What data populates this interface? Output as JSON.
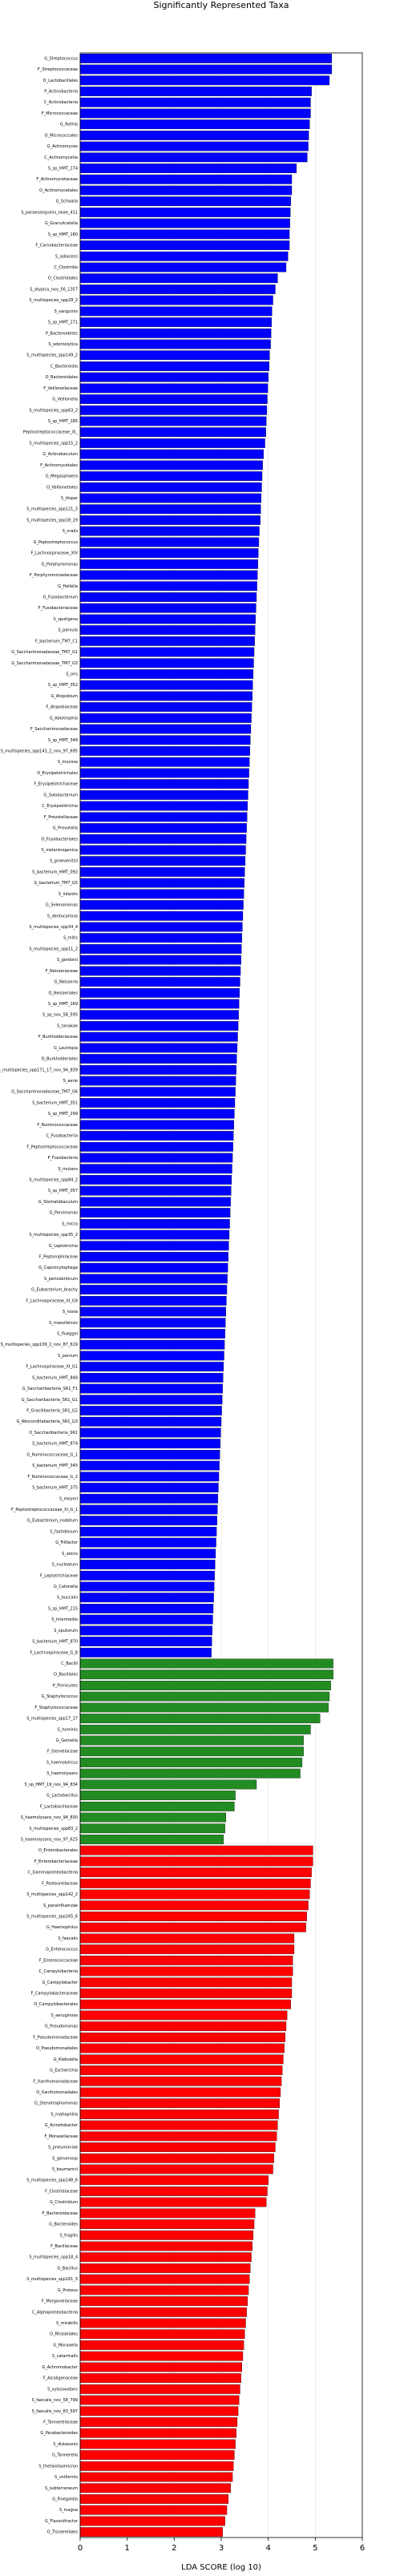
{
  "chart_data": {
    "type": "barh",
    "title": "Significantly Represented Taxa",
    "x_label": "LDA SCORE (log 10)",
    "xlim": [
      0,
      6
    ],
    "xticks": [
      0,
      1,
      2,
      3,
      4,
      5,
      6
    ],
    "grid": true,
    "groups": [
      {
        "color": "#0000ff",
        "categories": [
          "G_Streptococcus",
          "F_Streptococcaceae",
          "O_Lactobacillales",
          "P_Actinobacteria",
          "C_Actinobacteria",
          "F_Micrococcaceae",
          "G_Rothia",
          "O_Micrococcales",
          "G_Actinomyces",
          "C_Actinomycetia",
          "S_sp_HMT_174",
          "F_Actinomycetaceae",
          "O_Actinomycetales",
          "G_Schaalia",
          "S_paraesanguinis_oeae_411",
          "G_Granulicatella",
          "S_sp_HMT_180",
          "F_Carnobacteriaceae",
          "S_adiacens",
          "C_Clostridia",
          "O_Clostridiales",
          "S_atypica_nov_56_1357",
          "S_multispecies_spp29_2",
          "S_sanguinis",
          "S_sp_HMT_171",
          "P_Bacteroidetes",
          "S_odontolytica",
          "S_multispecies_spp149_2",
          "C_Bacteroidia",
          "O_Bacteroidales",
          "F_Veillonellaceae",
          "G_Veillonella",
          "S_multispecies_spp63_2",
          "S_sp_HMT_185",
          "Peptostreptococcaceae_XI_",
          "S_multispecies_spp15_2",
          "G_Actinobaculum",
          "F_Actinomycetales",
          "G_Megasphaera",
          "O_Veillonellales",
          "S_dispar",
          "S_multispecies_spp121_3",
          "S_multispecies_spp18_19",
          "S_oralis",
          "G_Peptostreptococcus",
          "F_Lachnospiraceae_XIV",
          "G_Porphyromonas",
          "F_Porphyromonadaceae",
          "G_Hallella",
          "G_Fusobacterium",
          "F_Fusobacteriaceae",
          "S_sputigena",
          "S_parvula",
          "F_bacterium_TM7_C1",
          "G_Saccharimonadaceae_TM7_G1",
          "G_Saccharimonadaceae_TM7_G3",
          "S_oris",
          "S_sp_HMT_352",
          "G_Atopobium",
          "F_Atopobiaceae",
          "G_Abiotrophia",
          "F_Saccharimonadaceae",
          "S_sp_HMT_348",
          "S_multispecies_spp143_2_nov_97_695",
          "S_mucosa",
          "O_Erysipelotrichales",
          "F_Erysipelotrichaceae",
          "G_Solobacterium",
          "C_Erysipelotrichia",
          "F_Prevotellaceae",
          "G_Prevotella",
          "O_Fusobacteriales",
          "S_melaninogenica",
          "S_graevenitzii",
          "S_bacterium_HMT_092",
          "G_bacterium_TM7_G5",
          "S_infantis",
          "G_Selenomonas",
          "S_dentocariosa",
          "S_multispecies_spp34_4",
          "S_mitis",
          "S_multispecies_spp11_2",
          "S_gordonii",
          "F_Neisseriaceae",
          "G_Neisseria",
          "O_Neisseriales",
          "S_sp_HMT_169",
          "S_sp_nov_58_595",
          "S_tanakae",
          "F_Burkholderiaceae",
          "G_Lautropia",
          "O_Burkholderiales",
          "S_multispecies_spp171_17_nov_94_839",
          "S_aerie",
          "G_Saccharimonadaceae_TM7_G6",
          "S_bacterium_HMT_351",
          "S_sp_HMT_299",
          "F_Ruminococcaceae",
          "C_Fusobacteriia",
          "F_Peptostreptococcaceae",
          "P_Fusobacteria",
          "S_mutans",
          "S_multispecies_spp84_2",
          "S_sp_HMT_057",
          "G_Stomatobaculum",
          "G_Parvimonas",
          "S_micra",
          "S_multispecies_spp35_2",
          "G_Leptotrichia",
          "F_Peptoniphilaceae",
          "G_Capnocytophaga",
          "S_periodonticum",
          "G_Eubacterium_brachy",
          "F_Lachnospiraceae_XI_G9",
          "S_noxia",
          "S_massiliensis",
          "S_flueggei",
          "S_multispecies_spp109_2_nov_87_619",
          "S_parvum",
          "F_Lachnospiraceae_XI_G1",
          "S_bacterium_HMT_848",
          "G_Saccharibacteria_SR1_F1",
          "G_Saccharibacteria_SR1_G1",
          "F_Gracilibacteria_SR1_G2",
          "G_Absconditabacteria_SR1_G3",
          "O_Saccharibacteria_SR1",
          "S_bacterium_HMT_874",
          "G_Ruminococcaceae_G_1",
          "S_bacterium_HMT_345",
          "F_Ruminococcaceae_G_2",
          "S_bacterium_HMT_375",
          "S_meyeri",
          "F_Peptostreptococcaceae_XI_G_1",
          "G_Eubacterium_nodatum",
          "S_fastidiosum",
          "G_Filifactor",
          "S_alocis",
          "S_nucleatum",
          "F_Leptotrichiaceae",
          "G_Catonella",
          "S_buccalis",
          "S_sp_HMT_215",
          "S_intermedia",
          "S_sputorum",
          "S_bacterium_HMT_870",
          "F_Lachnospiraceae_G_8"
        ],
        "values": [
          5.35,
          5.35,
          5.3,
          4.92,
          4.9,
          4.9,
          4.88,
          4.86,
          4.85,
          4.83,
          4.6,
          4.5,
          4.5,
          4.48,
          4.47,
          4.46,
          4.45,
          4.45,
          4.42,
          4.38,
          4.2,
          4.15,
          4.1,
          4.08,
          4.07,
          4.06,
          4.05,
          4.03,
          4.02,
          4.0,
          3.99,
          3.98,
          3.97,
          3.96,
          3.95,
          3.93,
          3.9,
          3.88,
          3.87,
          3.86,
          3.85,
          3.84,
          3.83,
          3.81,
          3.8,
          3.79,
          3.78,
          3.77,
          3.76,
          3.75,
          3.74,
          3.73,
          3.72,
          3.71,
          3.7,
          3.69,
          3.68,
          3.67,
          3.66,
          3.65,
          3.64,
          3.63,
          3.62,
          3.61,
          3.6,
          3.59,
          3.58,
          3.57,
          3.56,
          3.55,
          3.54,
          3.53,
          3.52,
          3.51,
          3.5,
          3.49,
          3.48,
          3.47,
          3.46,
          3.45,
          3.44,
          3.43,
          3.42,
          3.41,
          3.4,
          3.39,
          3.38,
          3.37,
          3.36,
          3.35,
          3.34,
          3.33,
          3.32,
          3.31,
          3.3,
          3.29,
          3.28,
          3.27,
          3.26,
          3.25,
          3.24,
          3.23,
          3.22,
          3.21,
          3.2,
          3.19,
          3.18,
          3.17,
          3.16,
          3.15,
          3.14,
          3.13,
          3.12,
          3.11,
          3.1,
          3.09,
          3.08,
          3.07,
          3.06,
          3.05,
          3.04,
          3.03,
          3.02,
          3.01,
          3.0,
          2.99,
          2.98,
          2.97,
          2.96,
          2.95,
          2.94,
          2.93,
          2.92,
          2.91,
          2.9,
          2.89,
          2.88,
          2.87,
          2.86,
          2.85,
          2.84,
          2.83,
          2.82,
          2.81,
          2.8,
          2.79
        ]
      },
      {
        "color": "#228b22",
        "categories": [
          "C_Bacilli",
          "O_Bacillales",
          "P_Firmicutes",
          "G_Staphylococcus",
          "F_Staphylococcaceae",
          "S_multispecies_spp17_17",
          "S_hominis",
          "G_Gemella",
          "F_Gemellaceae",
          "S_haemolyticus",
          "S_haemolysans",
          "S_sp_HMT_19_nov_94_834",
          "G_Lactobacillus",
          "F_Lactobacillaceae",
          "S_haemolysans_nov_94_830",
          "S_multispecies_spp83_2",
          "S_haemolysans_nov_97_625"
        ],
        "values": [
          5.38,
          5.38,
          5.33,
          5.3,
          5.28,
          5.1,
          4.9,
          4.75,
          4.75,
          4.72,
          4.68,
          3.75,
          3.3,
          3.28,
          3.1,
          3.08,
          3.05
        ]
      },
      {
        "color": "#ff0000",
        "categories": [
          "O_Enterobacterales",
          "F_Enterobacteriaceae",
          "C_Gammaproteobacteria",
          "F_Pasteurellaceae",
          "S_multispecies_spp142_2",
          "S_parainfluenzae",
          "S_multispecies_spp165_6",
          "G_Haemophilus",
          "S_faecalis",
          "G_Enterococcus",
          "F_Enterococcaceae",
          "C_Campylobacteria",
          "G_Campylobacter",
          "F_Campylobacteraceae",
          "O_Campylobacterales",
          "S_aeruginosa",
          "G_Pseudomonas",
          "F_Pseudomonadaceae",
          "O_Pseudomonadales",
          "G_Klebsiella",
          "G_Escherichia",
          "F_Xanthomonadaceae",
          "O_Xanthomonadales",
          "G_Stenotrophomonas",
          "S_maltophilia",
          "G_Acinetobacter",
          "F_Moraxellaceae",
          "S_pneumoniae",
          "S_genomosp",
          "S_baumannii",
          "S_multispecies_spp148_6",
          "F_Clostridiaceae",
          "G_Clostridium",
          "F_Bacteroidaceae",
          "G_Bacteroides",
          "S_fragilis",
          "F_Bacillaceae",
          "S_multispecies_spp18_4",
          "G_Bacillus",
          "S_multispecies_spp161_3",
          "G_Proteus",
          "F_Morganellaceae",
          "C_Alphaproteobacteria",
          "S_mirabilis",
          "O_Rhizobiales",
          "G_Moraxella",
          "S_catarrhalis",
          "G_Achromobacter",
          "F_Alcaligenaceae",
          "S_xylosoxidans",
          "S_faecalis_nov_58_799",
          "S_faecalis_nov_83_597",
          "F_Tannerellaceae",
          "G_Parabacteroides",
          "S_distasonis",
          "G_Tannerella",
          "S_thetaiotaomicron",
          "S_uniformis",
          "S_subterraneum",
          "G_Finegoldia",
          "S_magna",
          "G_Flavonifractor",
          "O_Tissierellales"
        ],
        "values": [
          4.95,
          4.95,
          4.92,
          4.9,
          4.88,
          4.85,
          4.82,
          4.8,
          4.55,
          4.55,
          4.52,
          4.52,
          4.5,
          4.5,
          4.48,
          4.4,
          4.38,
          4.36,
          4.34,
          4.32,
          4.3,
          4.28,
          4.26,
          4.24,
          4.22,
          4.2,
          4.18,
          4.15,
          4.12,
          4.1,
          4.0,
          3.98,
          3.96,
          3.72,
          3.7,
          3.68,
          3.66,
          3.64,
          3.62,
          3.6,
          3.58,
          3.56,
          3.54,
          3.52,
          3.5,
          3.48,
          3.46,
          3.44,
          3.42,
          3.4,
          3.38,
          3.36,
          3.34,
          3.32,
          3.3,
          3.28,
          3.26,
          3.24,
          3.2,
          3.15,
          3.12,
          3.08,
          3.03
        ]
      }
    ]
  }
}
